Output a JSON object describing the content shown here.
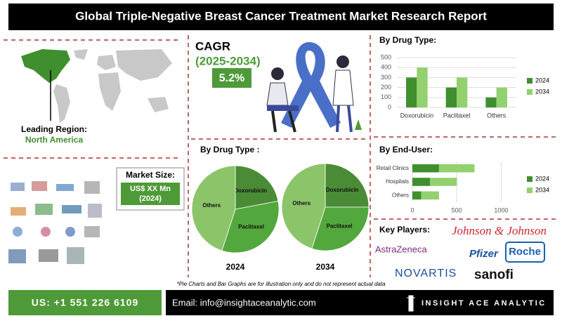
{
  "header": {
    "title": "Global Triple-Negative Breast Cancer Treatment Market Research Report"
  },
  "region": {
    "label": "Leading Region:",
    "value": "North America"
  },
  "market_size": {
    "label": "Market Size:",
    "value": "US$ XX Mn",
    "year": "(2024)"
  },
  "cagr": {
    "label": "CAGR",
    "period": "(2025-2034)",
    "value": "5.2%"
  },
  "chart_data": [
    {
      "type": "bar",
      "title": "By Drug Type:",
      "categories": [
        "Doxorubicin",
        "Paclitaxel",
        "Others"
      ],
      "series": [
        {
          "name": "2024",
          "color": "#3f8f2e",
          "values": [
            300,
            200,
            100
          ]
        },
        {
          "name": "2034",
          "color": "#93d06e",
          "values": [
            400,
            300,
            200
          ]
        }
      ],
      "ylim": [
        0,
        500
      ],
      "yticks": [
        0,
        100,
        200,
        300,
        400,
        500
      ],
      "grid": true
    },
    {
      "type": "hbar",
      "title": "By End-User:",
      "categories": [
        "Retail Clinics",
        "Hospitals",
        "Others"
      ],
      "series": [
        {
          "name": "2024",
          "color": "#3f8f2e",
          "values": [
            300,
            200,
            100
          ]
        },
        {
          "name": "2034",
          "color": "#93d06e",
          "values": [
            400,
            300,
            200
          ]
        }
      ],
      "xlim": [
        0,
        1250
      ],
      "xticks": [
        0,
        500,
        1000
      ],
      "grid": true
    },
    {
      "type": "pie",
      "title": "By Drug Type :",
      "label": "2024",
      "categories": [
        "Doxorubicin",
        "Paclitaxel",
        "Others"
      ],
      "values": [
        22,
        33,
        45
      ],
      "colors": [
        "#4a8c35",
        "#52a83c",
        "#8cc46a"
      ]
    },
    {
      "type": "pie",
      "label": "2034",
      "categories": [
        "Doxorubicin",
        "Paclitaxel",
        "Others"
      ],
      "values": [
        25,
        30,
        45
      ],
      "colors": [
        "#4a8c35",
        "#52a83c",
        "#8cc46a"
      ]
    }
  ],
  "key_players": {
    "label": "Key Players:",
    "companies": [
      "Johnson & Johnson",
      "AstraZeneca",
      "Pfizer",
      "Roche",
      "NOVARTIS",
      "sanofi"
    ]
  },
  "note": "*Pie Charts and Bar Graphs are for illustration only and do not represent actual data",
  "footer": {
    "phone": "US: +1 551 226 6109",
    "email": "Email: info@insightaceanalytic.com",
    "brand": "INSIGHT ACE ANALYTIC"
  }
}
